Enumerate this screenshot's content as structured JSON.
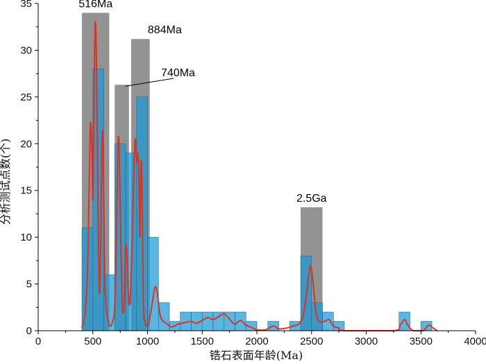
{
  "chart_data": {
    "type": "bar",
    "xlabel": "锆石表面年龄(Ma)",
    "ylabel": "分析测试点数(个)",
    "xlim": [
      0,
      4000
    ],
    "ylim": [
      0,
      35
    ],
    "x_ticks": [
      0,
      500,
      1000,
      1500,
      2000,
      2500,
      3000,
      3500,
      4000
    ],
    "y_ticks": [
      0,
      5,
      10,
      15,
      20,
      25,
      30,
      35
    ],
    "grid": false,
    "histogram": {
      "name": "",
      "color": "#1a9ad6",
      "bin_width": 100,
      "bins": [
        {
          "x0": 400,
          "count": 11
        },
        {
          "x0": 500,
          "count": 28
        },
        {
          "x0": 600,
          "count": 6
        },
        {
          "x0": 700,
          "count": 20
        },
        {
          "x0": 800,
          "count": 19
        },
        {
          "x0": 900,
          "count": 25
        },
        {
          "x0": 1000,
          "count": 10
        },
        {
          "x0": 1100,
          "count": 3
        },
        {
          "x0": 1200,
          "count": 1
        },
        {
          "x0": 1300,
          "count": 2
        },
        {
          "x0": 1400,
          "count": 2
        },
        {
          "x0": 1500,
          "count": 2
        },
        {
          "x0": 1600,
          "count": 2
        },
        {
          "x0": 1700,
          "count": 2
        },
        {
          "x0": 1800,
          "count": 2
        },
        {
          "x0": 1900,
          "count": 1
        },
        {
          "x0": 2100,
          "count": 1
        },
        {
          "x0": 2300,
          "count": 1
        },
        {
          "x0": 2400,
          "count": 8
        },
        {
          "x0": 2500,
          "count": 3
        },
        {
          "x0": 2600,
          "count": 2
        },
        {
          "x0": 2700,
          "count": 1
        },
        {
          "x0": 3300,
          "count": 2
        },
        {
          "x0": 3500,
          "count": 1
        }
      ]
    },
    "age_groups": [
      {
        "label": "516Ma",
        "x0": 400,
        "x1": 650,
        "height": 34
      },
      {
        "label": "740Ma",
        "x0": 700,
        "x1": 830,
        "height": 26.3
      },
      {
        "label": "884Ma",
        "x0": 850,
        "x1": 1020,
        "height": 31.2
      },
      {
        "label": "2.5Ga",
        "x0": 2400,
        "x1": 2600,
        "height": 13.2
      }
    ],
    "group_color": "#808080",
    "density_curve": {
      "color": "#e0301e",
      "points": [
        [
          400,
          0.3
        ],
        [
          430,
          2
        ],
        [
          455,
          8
        ],
        [
          475,
          21.5
        ],
        [
          490,
          20
        ],
        [
          500,
          14
        ],
        [
          510,
          24
        ],
        [
          522,
          33
        ],
        [
          535,
          27
        ],
        [
          548,
          12
        ],
        [
          560,
          4
        ],
        [
          572,
          10
        ],
        [
          585,
          21
        ],
        [
          596,
          18
        ],
        [
          608,
          6
        ],
        [
          620,
          3
        ],
        [
          640,
          1
        ],
        [
          660,
          0.5
        ],
        [
          680,
          1
        ],
        [
          700,
          2.5
        ],
        [
          715,
          10
        ],
        [
          730,
          20
        ],
        [
          742,
          19
        ],
        [
          755,
          10
        ],
        [
          768,
          3
        ],
        [
          780,
          2
        ],
        [
          790,
          4
        ],
        [
          800,
          9
        ],
        [
          812,
          8
        ],
        [
          825,
          4
        ],
        [
          840,
          3
        ],
        [
          855,
          8
        ],
        [
          868,
          14
        ],
        [
          880,
          19
        ],
        [
          890,
          20.5
        ],
        [
          900,
          18
        ],
        [
          910,
          19
        ],
        [
          920,
          17
        ],
        [
          930,
          10
        ],
        [
          940,
          18
        ],
        [
          950,
          15
        ],
        [
          962,
          3
        ],
        [
          975,
          1
        ],
        [
          990,
          0.5
        ],
        [
          1010,
          0.8
        ],
        [
          1030,
          2
        ],
        [
          1050,
          3.5
        ],
        [
          1070,
          4.7
        ],
        [
          1090,
          4
        ],
        [
          1110,
          2
        ],
        [
          1130,
          1.2
        ],
        [
          1170,
          0.8
        ],
        [
          1220,
          0.4
        ],
        [
          1280,
          0.7
        ],
        [
          1350,
          0.9
        ],
        [
          1400,
          1
        ],
        [
          1450,
          0.8
        ],
        [
          1500,
          1.1
        ],
        [
          1550,
          1.4
        ],
        [
          1600,
          1.2
        ],
        [
          1650,
          1.5
        ],
        [
          1700,
          1.8
        ],
        [
          1760,
          1.1
        ],
        [
          1800,
          0.7
        ],
        [
          1850,
          1.1
        ],
        [
          1900,
          0.6
        ],
        [
          1960,
          0.3
        ],
        [
          2000,
          0.1
        ],
        [
          2080,
          0.1
        ],
        [
          2150,
          0.5
        ],
        [
          2200,
          0.2
        ],
        [
          2280,
          0.3
        ],
        [
          2330,
          0.5
        ],
        [
          2380,
          0.7
        ],
        [
          2420,
          1.5
        ],
        [
          2450,
          3.5
        ],
        [
          2480,
          6.5
        ],
        [
          2495,
          6.8
        ],
        [
          2515,
          5
        ],
        [
          2540,
          2
        ],
        [
          2570,
          1
        ],
        [
          2620,
          1
        ],
        [
          2660,
          1.2
        ],
        [
          2700,
          0.5
        ],
        [
          2750,
          0.3
        ],
        [
          2800,
          0
        ],
        [
          3250,
          0
        ],
        [
          3310,
          0.6
        ],
        [
          3350,
          1.2
        ],
        [
          3380,
          0.6
        ],
        [
          3430,
          0
        ],
        [
          3520,
          0
        ],
        [
          3570,
          0.6
        ],
        [
          3610,
          0.3
        ],
        [
          3650,
          0
        ]
      ]
    }
  }
}
